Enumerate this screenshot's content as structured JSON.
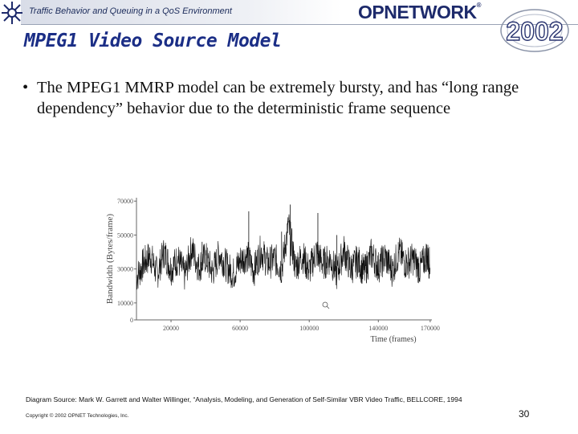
{
  "header": {
    "deck_title": "Traffic Behavior and Queuing in a QoS Environment",
    "logo_text": "OPNETWORK",
    "logo_mark": "®",
    "year_badge": "2002",
    "colors": {
      "logo": "#1d2a6b",
      "title": "#1b2e86"
    }
  },
  "slide": {
    "title": "MPEG1 Video Source Model",
    "bullet_marker": "•",
    "bullet": "The MPEG1 MMRP model can be extremely bursty, and has “long range dependency” behavior due to the deterministic frame sequence"
  },
  "chart_data": {
    "type": "line",
    "xlabel": "Time (frames)",
    "ylabel": "Bandwidth (Bytes/frame)",
    "xlim": [
      0,
      171000
    ],
    "ylim": [
      0,
      72000
    ],
    "x_ticks": [
      {
        "value": 20000,
        "label": "20000"
      },
      {
        "value": 60000,
        "label": "60000"
      },
      {
        "value": 100000,
        "label": "100000"
      },
      {
        "value": 140000,
        "label": "140000"
      },
      {
        "value": 170000,
        "label": "170000"
      }
    ],
    "y_ticks": [
      {
        "value": 0,
        "label": "0"
      },
      {
        "value": 10000,
        "label": "10000"
      },
      {
        "value": 30000,
        "label": "30000"
      },
      {
        "value": 50000,
        "label": "50000"
      },
      {
        "value": 70000,
        "label": "70000"
      }
    ],
    "grid": false,
    "series": [
      {
        "values": [
          [
            0,
            25000
          ],
          [
            4000,
            33000
          ],
          [
            8000,
            38000
          ],
          [
            12000,
            27000
          ],
          [
            16000,
            40000
          ],
          [
            20000,
            30000
          ],
          [
            24000,
            36000
          ],
          [
            28000,
            26000
          ],
          [
            32000,
            42000
          ],
          [
            36000,
            31000
          ],
          [
            40000,
            37000
          ],
          [
            44000,
            28000
          ],
          [
            48000,
            39000
          ],
          [
            52000,
            32000
          ],
          [
            56000,
            27000
          ],
          [
            60000,
            35000
          ],
          [
            64000,
            38000
          ],
          [
            68000,
            29000
          ],
          [
            72000,
            41000
          ],
          [
            76000,
            33000
          ],
          [
            80000,
            36000
          ],
          [
            84000,
            30000
          ],
          [
            88000,
            56000
          ],
          [
            92000,
            31000
          ],
          [
            96000,
            38000
          ],
          [
            100000,
            29000
          ],
          [
            104000,
            40000
          ],
          [
            108000,
            33000
          ],
          [
            112000,
            36000
          ],
          [
            116000,
            27000
          ],
          [
            120000,
            41000
          ],
          [
            124000,
            30000
          ],
          [
            128000,
            35000
          ],
          [
            132000,
            28000
          ],
          [
            136000,
            39000
          ],
          [
            140000,
            31000
          ],
          [
            144000,
            37000
          ],
          [
            148000,
            29000
          ],
          [
            152000,
            40000
          ],
          [
            156000,
            33000
          ],
          [
            160000,
            36000
          ],
          [
            164000,
            30000
          ],
          [
            168000,
            38000
          ],
          [
            170000,
            32000
          ]
        ]
      }
    ],
    "annotations": [
      {
        "x": 38000,
        "y": 46000
      },
      {
        "x": 65000,
        "y": 64000
      },
      {
        "x": 84000,
        "y": 52000
      },
      {
        "x": 89000,
        "y": 68000
      },
      {
        "x": 105000,
        "y": 63000
      },
      {
        "x": 116000,
        "y": 50000
      }
    ]
  },
  "footer": {
    "source": "Diagram Source:  Mark W. Garrett and Walter Willinger, “Analysis, Modeling, and Generation of Self-Similar VBR Video Traffic, BELLCORE, 1994",
    "copyright": "Copyright © 2002 OPNET Technologies, Inc.",
    "page_number": "30"
  }
}
